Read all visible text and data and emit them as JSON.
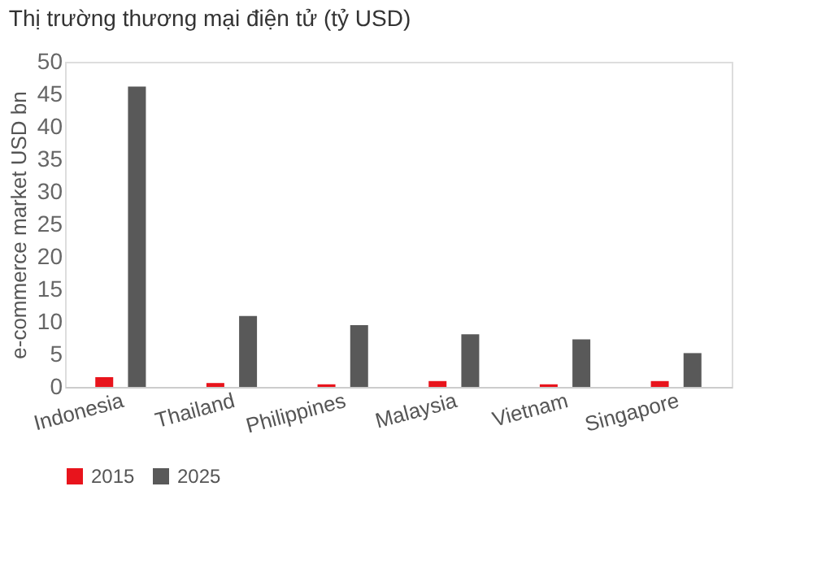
{
  "chart_data": {
    "type": "bar",
    "title": "Thị trường thương mại điện tử (tỷ USD)",
    "ylabel": "e-commerce market USD bn",
    "categories": [
      "Indonesia",
      "Thailand",
      "Philippines",
      "Malaysia",
      "Vietnam",
      "Singapore"
    ],
    "series": [
      {
        "name": "2015",
        "color": "#e8141c",
        "values": [
          1.5,
          0.6,
          0.4,
          0.9,
          0.4,
          0.9
        ]
      },
      {
        "name": "2025",
        "color": "#595959",
        "values": [
          46.2,
          10.9,
          9.5,
          8.1,
          7.3,
          5.2
        ]
      }
    ],
    "ylim": [
      0,
      50
    ],
    "yticks": [
      0,
      5,
      10,
      15,
      20,
      25,
      30,
      35,
      40,
      45,
      50
    ],
    "grid": false,
    "legend": "bottom"
  }
}
